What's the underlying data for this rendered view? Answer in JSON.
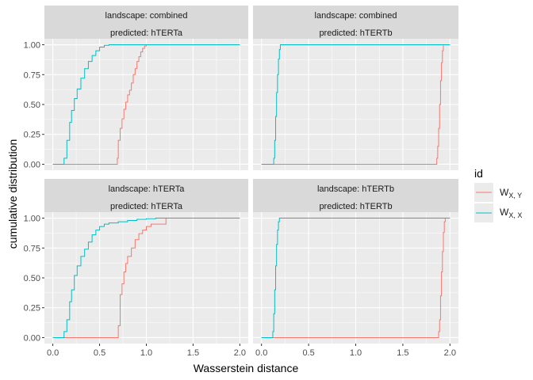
{
  "chart_data": {
    "type": "line",
    "step": true,
    "xlabel": "Wasserstein distance",
    "ylabel": "cumulative distribution",
    "xlim": [
      0,
      2
    ],
    "ylim": [
      0,
      1
    ],
    "x_ticks": [
      "0.0",
      "0.5",
      "1.0",
      "1.5",
      "2.0"
    ],
    "y_ticks": [
      "0.00",
      "0.25",
      "0.50",
      "0.75",
      "1.00"
    ],
    "grid": true,
    "legend": {
      "title": "id",
      "position": "right",
      "entries": [
        {
          "main": "W",
          "sub": "X, Y",
          "color": "#F8766D"
        },
        {
          "main": "W",
          "sub": "X, X",
          "color": "#00BFC4"
        }
      ]
    },
    "panels": [
      {
        "strip": [
          "landscape: combined",
          "predicted: hTERTa"
        ],
        "series": [
          {
            "sub": "X, Y",
            "color": "#F8766D",
            "x": [
              0.0,
              0.68,
              0.69,
              0.7,
              0.72,
              0.74,
              0.76,
              0.78,
              0.8,
              0.82,
              0.84,
              0.86,
              0.88,
              0.9,
              0.92,
              0.94,
              0.96,
              0.98,
              1.0,
              2.0
            ],
            "y": [
              0,
              0,
              0.05,
              0.2,
              0.3,
              0.38,
              0.46,
              0.52,
              0.58,
              0.62,
              0.68,
              0.75,
              0.8,
              0.86,
              0.9,
              0.94,
              0.97,
              0.99,
              1.0,
              1.0
            ]
          },
          {
            "sub": "X, X",
            "color": "#00BFC4",
            "x": [
              0.0,
              0.1,
              0.12,
              0.15,
              0.18,
              0.2,
              0.23,
              0.26,
              0.3,
              0.34,
              0.38,
              0.42,
              0.46,
              0.5,
              0.55,
              0.6,
              2.0
            ],
            "y": [
              0,
              0,
              0.05,
              0.2,
              0.35,
              0.45,
              0.55,
              0.63,
              0.72,
              0.8,
              0.86,
              0.91,
              0.95,
              0.98,
              0.995,
              1.0,
              1.0
            ]
          }
        ]
      },
      {
        "strip": [
          "landscape: combined",
          "predicted: hTERTb"
        ],
        "series": [
          {
            "sub": "X, Y",
            "color": "#F8766D",
            "x": [
              0.0,
              1.85,
              1.86,
              1.87,
              1.88,
              1.89,
              1.9,
              1.91,
              1.92,
              1.93,
              2.0
            ],
            "y": [
              0,
              0,
              0.05,
              0.15,
              0.3,
              0.5,
              0.7,
              0.85,
              0.95,
              1.0,
              1.0
            ]
          },
          {
            "sub": "X, X",
            "color": "#00BFC4",
            "x": [
              0.0,
              0.12,
              0.13,
              0.14,
              0.15,
              0.16,
              0.17,
              0.18,
              0.19,
              0.2,
              2.0
            ],
            "y": [
              0,
              0,
              0.05,
              0.2,
              0.4,
              0.6,
              0.75,
              0.88,
              0.96,
              1.0,
              1.0
            ]
          }
        ]
      },
      {
        "strip": [
          "landscape: hTERTa",
          "predicted: hTERTa"
        ],
        "series": [
          {
            "sub": "X, Y",
            "color": "#F8766D",
            "x": [
              0.0,
              0.68,
              0.7,
              0.72,
              0.74,
              0.76,
              0.78,
              0.8,
              0.84,
              0.88,
              0.92,
              0.96,
              1.0,
              1.05,
              1.1,
              1.2,
              1.21,
              2.0
            ],
            "y": [
              0,
              0,
              0.1,
              0.36,
              0.45,
              0.55,
              0.62,
              0.68,
              0.75,
              0.82,
              0.87,
              0.9,
              0.93,
              0.95,
              0.95,
              0.95,
              1.0,
              1.0
            ]
          },
          {
            "sub": "X, X",
            "color": "#00BFC4",
            "x": [
              0.0,
              0.1,
              0.12,
              0.15,
              0.18,
              0.2,
              0.23,
              0.26,
              0.3,
              0.34,
              0.38,
              0.42,
              0.46,
              0.5,
              0.55,
              0.6,
              0.7,
              0.8,
              0.9,
              1.0,
              1.1,
              2.0
            ],
            "y": [
              0,
              0,
              0.05,
              0.15,
              0.3,
              0.4,
              0.52,
              0.6,
              0.68,
              0.74,
              0.8,
              0.86,
              0.9,
              0.93,
              0.95,
              0.96,
              0.97,
              0.98,
              0.99,
              0.995,
              1.0,
              1.0
            ]
          }
        ]
      },
      {
        "strip": [
          "landscape: hTERTb",
          "predicted: hTERTb"
        ],
        "series": [
          {
            "sub": "X, Y",
            "color": "#F8766D",
            "x": [
              0.0,
              1.87,
              1.88,
              1.89,
              1.9,
              1.91,
              1.92,
              1.93,
              1.94,
              1.95,
              2.0
            ],
            "y": [
              0,
              0,
              0.05,
              0.15,
              0.35,
              0.55,
              0.72,
              0.88,
              0.97,
              1.0,
              1.0
            ]
          },
          {
            "sub": "X, X",
            "color": "#00BFC4",
            "x": [
              0.0,
              0.11,
              0.12,
              0.13,
              0.14,
              0.15,
              0.16,
              0.17,
              0.18,
              0.19,
              2.0
            ],
            "y": [
              0,
              0,
              0.05,
              0.2,
              0.4,
              0.6,
              0.78,
              0.9,
              0.97,
              1.0,
              1.0
            ]
          }
        ]
      }
    ]
  }
}
